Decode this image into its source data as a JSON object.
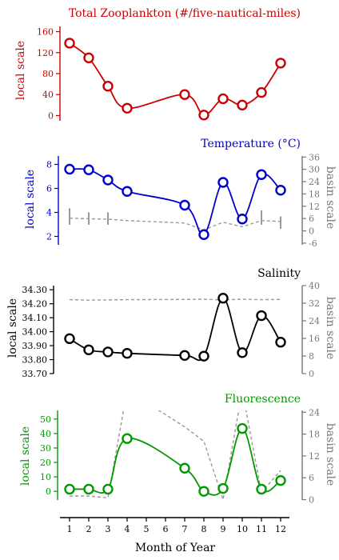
{
  "chart_data": [
    {
      "type": "line",
      "title": "Total Zooplankton (#/five-nautical-miles)",
      "ylabel": "local scale",
      "ylim": [
        -10,
        170
      ],
      "yticks": [
        0,
        40,
        80,
        120,
        160
      ],
      "color": "#cc0000",
      "x": [
        1,
        2,
        3,
        4,
        7,
        8,
        9,
        10,
        11,
        12
      ],
      "series": [
        {
          "values": [
            138,
            110,
            56,
            14,
            40,
            1,
            32,
            20,
            44,
            100
          ]
        }
      ]
    },
    {
      "type": "line",
      "title": "Temperature (°C)",
      "ylabel": "local scale",
      "ylabel_right": "basin scale",
      "ylim": [
        1.3,
        8.7
      ],
      "yticks": [
        2,
        4,
        6,
        8
      ],
      "ylim_right": [
        -6.8,
        36.5
      ],
      "yticks_right": [
        -6,
        0,
        6,
        12,
        18,
        24,
        30,
        36
      ],
      "color": "#0000cc",
      "x": [
        1,
        2,
        3,
        4,
        7,
        8,
        9,
        10,
        11,
        12
      ],
      "series": [
        {
          "values": [
            7.6,
            7.55,
            6.7,
            5.75,
            4.6,
            2.15,
            6.5,
            3.45,
            7.15,
            5.85
          ]
        },
        {
          "axis": "right",
          "style": "dashed",
          "values": [
            6.2,
            5.9,
            5.7,
            5,
            3.8,
            0.5,
            4.2,
            2,
            5,
            4.6
          ],
          "ranges": [
            [
              3,
              11
            ],
            [
              3,
              9
            ],
            [
              3,
              9
            ],
            [
              0,
              0
            ],
            [
              0,
              0
            ],
            [
              0,
              0
            ],
            [
              0,
              0
            ],
            [
              0,
              0
            ],
            [
              3,
              10
            ],
            [
              1,
              7
            ]
          ]
        }
      ]
    },
    {
      "type": "line",
      "title": "Salinity",
      "ylabel": "local scale",
      "ylabel_right": "basin scale",
      "ylim": [
        33.7,
        34.33
      ],
      "yticks": [
        33.7,
        33.8,
        33.9,
        34.0,
        34.1,
        34.2,
        34.3
      ],
      "ylim_right": [
        0,
        40
      ],
      "yticks_right": [
        0,
        8,
        16,
        24,
        32,
        40
      ],
      "color": "#000000",
      "x": [
        1,
        2,
        3,
        4,
        7,
        8,
        9,
        10,
        11,
        12
      ],
      "series": [
        {
          "values": [
            33.95,
            33.87,
            33.855,
            33.845,
            33.83,
            33.825,
            34.24,
            33.85,
            34.115,
            33.925
          ]
        },
        {
          "axis": "right",
          "style": "dashed",
          "values": [
            33.6,
            33.4,
            33.5,
            33.6,
            33.7,
            33.8,
            33.5,
            33.8,
            33.6,
            33.7
          ]
        }
      ]
    },
    {
      "type": "line",
      "title": "Fluorescence",
      "xlabel": "Month of Year",
      "ylabel": "local scale",
      "ylabel_right": "basin scale",
      "ylim": [
        -6,
        56
      ],
      "yticks": [
        0,
        10,
        20,
        30,
        40,
        50
      ],
      "ylim_right": [
        -0.1,
        24.5
      ],
      "yticks_right": [
        0,
        6,
        12,
        18,
        24
      ],
      "color": "#009900",
      "x": [
        1,
        2,
        3,
        4,
        7,
        8,
        9,
        10,
        11,
        12
      ],
      "xticks": [
        1,
        2,
        3,
        4,
        5,
        6,
        7,
        8,
        9,
        10,
        11,
        12
      ],
      "series": [
        {
          "values": [
            1.5,
            1.5,
            1.5,
            36.5,
            16,
            0,
            2,
            43.5,
            1.5,
            7.5
          ]
        },
        {
          "axis": "right",
          "style": "dashed",
          "values": [
            1,
            1,
            0.5,
            30,
            20,
            16,
            0,
            30,
            2,
            8
          ]
        }
      ]
    }
  ]
}
